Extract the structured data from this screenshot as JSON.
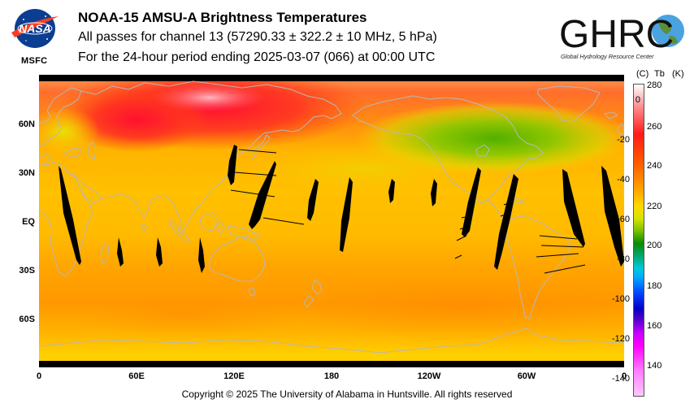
{
  "header": {
    "nasa_logo_text": "NASA",
    "msfc_label": "MSFC",
    "title": "NOAA-15 AMSU-A Brightness Temperatures",
    "subtitle": "All passes for channel 13 (57290.33 ± 322.2 ± 10 MHz, 5 hPa)",
    "period": "For the 24-hour period ending 2025-03-07 (066) at 00:00 UTC",
    "ghrc_logo_text": "GHRC",
    "ghrc_tagline": "Global Hydrology Resource Center"
  },
  "map": {
    "projection": "equirectangular",
    "x_ticks": [
      "0",
      "60E",
      "120E",
      "180",
      "120W",
      "60W",
      "0"
    ],
    "y_ticks": [
      "60N",
      "30N",
      "EQ",
      "30S",
      "60S"
    ],
    "coastline_color": "#b8b8b8",
    "missing_color": "#000000"
  },
  "colorbar": {
    "header_c": "(C)",
    "header_tb": "Tb",
    "header_k": "(K)",
    "celsius_ticks": [
      "0",
      "-20",
      "-40",
      "-60",
      "-80",
      "-100",
      "-120",
      "-140"
    ],
    "kelvin_ticks": [
      "280",
      "260",
      "240",
      "220",
      "200",
      "180",
      "160",
      "140"
    ]
  },
  "footer": {
    "copyright": "Copyright © 2025 The University of Alabama in Huntsville.  All rights reserved"
  }
}
